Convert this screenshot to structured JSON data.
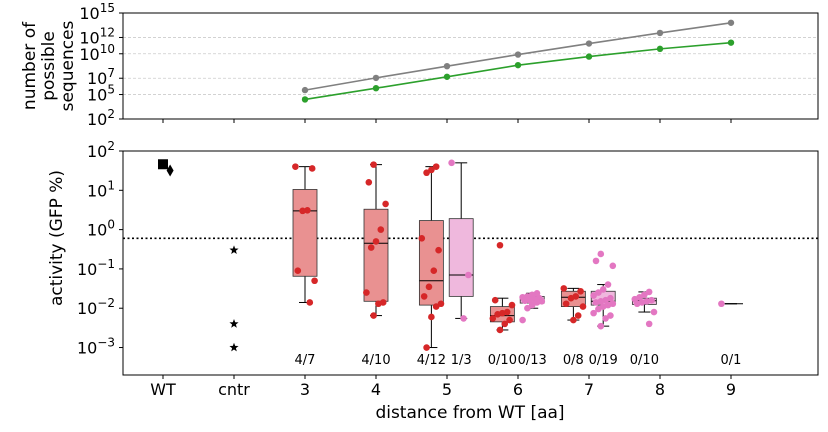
{
  "chart_data": [
    {
      "type": "line",
      "ylabel": "number of\npossible\nsequences",
      "yscale": "log",
      "ylim": [
        100,
        1000000000000000.0
      ],
      "yticks": [
        {
          "value": 100.0,
          "base": "10",
          "exp": "2"
        },
        {
          "value": 100000.0,
          "base": "10",
          "exp": "5"
        },
        {
          "value": 10000000.0,
          "base": "10",
          "exp": "7"
        },
        {
          "value": 10000000000.0,
          "base": "10",
          "exp": "10"
        },
        {
          "value": 1000000000000.0,
          "base": "10",
          "exp": "12"
        },
        {
          "value": 1000000000000000.0,
          "base": "10",
          "exp": "15"
        }
      ],
      "grid": "horizontal dashed",
      "series": [
        {
          "color": "#808080",
          "x": [
            3,
            4,
            5,
            6,
            7,
            8,
            9
          ],
          "y": [
            350000.0,
            11000000.0,
            300000000.0,
            8000000000.0,
            180000000000.0,
            3600000000000.0,
            63000000000000.0
          ]
        },
        {
          "color": "#2ca02c",
          "x": [
            3,
            4,
            5,
            6,
            7,
            8,
            9
          ],
          "y": [
            25000.0,
            600000.0,
            15000000.0,
            400000000.0,
            4500000000.0,
            40000000000.0,
            230000000000.0
          ]
        }
      ]
    },
    {
      "type": "box",
      "xlabel": "distance from WT [aa]",
      "ylabel": "activity (GFP %)",
      "yscale": "log",
      "ylim": [
        0.0002,
        100
      ],
      "yticks": [
        {
          "value": 0.001,
          "base": "10",
          "exp": "−3"
        },
        {
          "value": 0.01,
          "base": "10",
          "exp": "−2"
        },
        {
          "value": 0.1,
          "base": "10",
          "exp": "−1"
        },
        {
          "value": 1,
          "base": "10",
          "exp": "0"
        },
        {
          "value": 10,
          "base": "10",
          "exp": "1"
        },
        {
          "value": 100,
          "base": "10",
          "exp": "2"
        }
      ],
      "xticks": [
        {
          "pos": 1,
          "label": "WT"
        },
        {
          "pos": 2,
          "label": "cntr"
        },
        {
          "pos": 3,
          "label": "3"
        },
        {
          "pos": 4,
          "label": "4"
        },
        {
          "pos": 5,
          "label": "5"
        },
        {
          "pos": 6,
          "label": "6"
        },
        {
          "pos": 7,
          "label": "7"
        },
        {
          "pos": 8,
          "label": "8"
        },
        {
          "pos": 9,
          "label": "9"
        }
      ],
      "threshold": 0.6,
      "colors": {
        "red": "#d62728",
        "pink": "#e377c2",
        "red_box": "#e99191",
        "pink_box": "#efb8dd"
      },
      "wt_markers": [
        {
          "x": 1,
          "y": 46,
          "marker": "square"
        },
        {
          "x": 1.1,
          "y": 32,
          "marker": "diamond"
        }
      ],
      "control_points": [
        {
          "x": 2,
          "y": 0.3
        },
        {
          "x": 2,
          "y": 0.004
        },
        {
          "x": 2,
          "y": 0.001
        }
      ],
      "groups": [
        {
          "x": 3.0,
          "color": "red",
          "count": "4/7",
          "box": {
            "q1": 0.065,
            "median": 3.0,
            "q3": 10.5,
            "whislo": 0.014,
            "whishi": 40
          },
          "points": [
            40,
            36,
            3.1,
            3.0,
            0.09,
            0.05,
            0.014
          ]
        },
        {
          "x": 4.0,
          "color": "red",
          "count": "4/10",
          "box": {
            "q1": 0.015,
            "median": 0.45,
            "q3": 3.3,
            "whislo": 0.0065,
            "whishi": 45
          },
          "points": [
            45,
            16,
            4.5,
            1.0,
            0.5,
            0.35,
            0.025,
            0.014,
            0.013,
            0.0065
          ]
        },
        {
          "x": 4.78,
          "color": "red",
          "count": "4/12",
          "box": {
            "q1": 0.012,
            "median": 0.05,
            "q3": 1.7,
            "whislo": 0.001,
            "whishi": 40
          },
          "points": [
            40,
            33,
            28,
            0.6,
            0.3,
            0.09,
            0.035,
            0.02,
            0.013,
            0.011,
            0.006,
            0.001
          ]
        },
        {
          "x": 5.2,
          "color": "pink",
          "count": "1/3",
          "box": {
            "q1": 0.02,
            "median": 0.07,
            "q3": 1.9,
            "whislo": 0.0055,
            "whishi": 50
          },
          "points": [
            50,
            0.07,
            0.0055
          ]
        },
        {
          "x": 5.78,
          "color": "red",
          "count": "0/10",
          "box": {
            "q1": 0.0045,
            "median": 0.0065,
            "q3": 0.011,
            "whislo": 0.0028,
            "whishi": 0.018
          },
          "points": [
            0.4,
            0.016,
            0.012,
            0.008,
            0.0075,
            0.007,
            0.0055,
            0.005,
            0.004,
            0.0028
          ]
        },
        {
          "x": 6.2,
          "color": "pink",
          "count": "0/13",
          "box": {
            "q1": 0.0135,
            "median": 0.0165,
            "q3": 0.02,
            "whislo": 0.01,
            "whishi": 0.024
          },
          "points": [
            0.024,
            0.022,
            0.02,
            0.019,
            0.018,
            0.017,
            0.016,
            0.0155,
            0.015,
            0.014,
            0.012,
            0.01,
            0.005
          ]
        },
        {
          "x": 6.78,
          "color": "red",
          "count": "0/8",
          "box": {
            "q1": 0.011,
            "median": 0.019,
            "q3": 0.027,
            "whislo": 0.005,
            "whishi": 0.032
          },
          "points": [
            0.032,
            0.027,
            0.02,
            0.018,
            0.013,
            0.011,
            0.0065,
            0.005
          ]
        },
        {
          "x": 7.2,
          "color": "pink",
          "count": "0/19",
          "box": {
            "q1": 0.012,
            "median": 0.015,
            "q3": 0.027,
            "whislo": 0.0035,
            "whishi": 0.04
          },
          "points": [
            0.24,
            0.16,
            0.12,
            0.04,
            0.03,
            0.025,
            0.021,
            0.018,
            0.016,
            0.015,
            0.014,
            0.013,
            0.012,
            0.011,
            0.0095,
            0.0075,
            0.0065,
            0.0055,
            0.0035
          ]
        },
        {
          "x": 7.78,
          "color": "pink",
          "count": "0/10",
          "box": {
            "q1": 0.0125,
            "median": 0.0155,
            "q3": 0.018,
            "whislo": 0.008,
            "whishi": 0.026
          },
          "points": [
            0.026,
            0.022,
            0.019,
            0.017,
            0.016,
            0.015,
            0.014,
            0.013,
            0.008,
            0.004
          ]
        },
        {
          "x": 9.0,
          "color": "pink",
          "count": "0/1",
          "box": {
            "q1": 0.013,
            "median": 0.013,
            "q3": 0.013,
            "whislo": 0.013,
            "whishi": 0.013
          },
          "points": [
            0.013
          ]
        }
      ]
    }
  ]
}
